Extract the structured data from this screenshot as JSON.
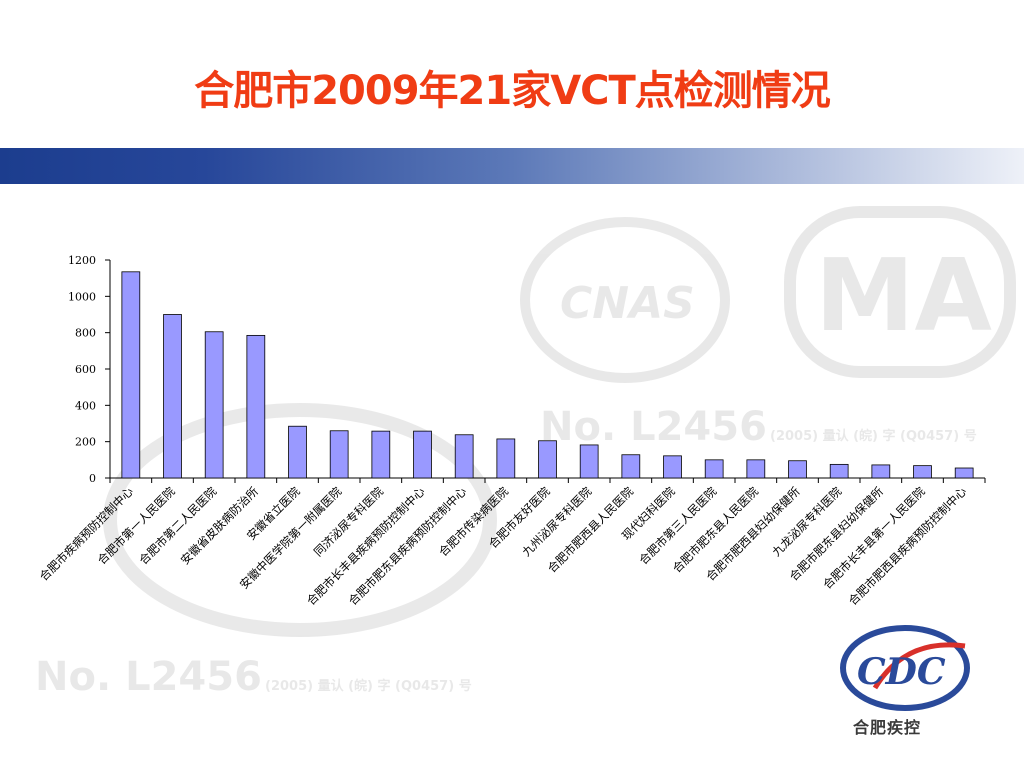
{
  "slide": {
    "title": "合肥市2009年21家VCT点检测情况"
  },
  "watermark": {
    "cnas": "CNAS",
    "ma": "MA",
    "reg_no": "No. L2456",
    "small_text": "(2005) 量认 (皖) 字 (Q0457) 号"
  },
  "logo": {
    "text": "合肥疾控",
    "letters": "CDC"
  },
  "colors": {
    "title": "#f03c14",
    "bar_fill": "#9999ff",
    "bar_stroke": "#000000",
    "band_start": "#1c3d8e",
    "band_end": "#eef1f8",
    "logo_blue": "#2a4a9a",
    "logo_red": "#d8302a"
  },
  "chart_data": {
    "type": "bar",
    "categories": [
      "合肥市疾病预防控制中心",
      "合肥市第一人民医院",
      "合肥市第二人民医院",
      "安徽省皮肤病防治所",
      "安徽省立医院",
      "安徽中医学院第一附属医院",
      "同济泌尿专科医院",
      "合肥市长丰县疾病预防控制中心",
      "合肥市肥东县疾病预防控制中心",
      "合肥市传染病医院",
      "合肥市友好医院",
      "九州泌尿专科医院",
      "合肥市肥西县人民医院",
      "现代妇科医院",
      "合肥市第三人民医院",
      "合肥市肥东县人民医院",
      "合肥市肥西县妇幼保健所",
      "九龙泌尿专科医院",
      "合肥市肥东县妇幼保健所",
      "合肥市长丰县第一人民医院",
      "合肥市肥西县疾病预防控制中心"
    ],
    "values": [
      1135,
      900,
      805,
      785,
      285,
      260,
      258,
      258,
      238,
      215,
      205,
      182,
      128,
      122,
      100,
      100,
      95,
      75,
      72,
      68,
      55
    ],
    "yticks": [
      0,
      200,
      400,
      600,
      800,
      1000,
      1200
    ],
    "ylim": [
      0,
      1200
    ],
    "grid": false,
    "legend": "none"
  }
}
